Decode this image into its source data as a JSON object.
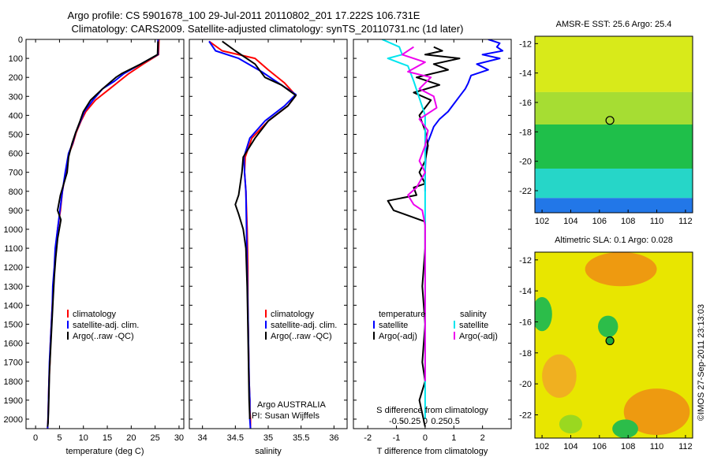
{
  "header": {
    "line1": "Argo profile: CS 5901678_100 29-Jul-2011 20110802_201 17.222S 106.731E",
    "line2": "Climatology: CARS2009. Satellite-adjusted climatology: synTS_20110731.nc (1d later)"
  },
  "timestamp": "©IMOS 27-Sep-2011 23:13:03",
  "colors": {
    "clim": "#ff0000",
    "sat": "#0000ff",
    "argo": "#000000",
    "sal_sat": "#00e5ee",
    "sal_argo": "#ee00ee"
  },
  "chart_data": [
    {
      "id": "temperature",
      "type": "line",
      "title": "",
      "xlabel": "temperature (deg C)",
      "ylabel": "",
      "xlim": [
        -2,
        31
      ],
      "ylim": [
        0,
        2050
      ],
      "xticks": [
        0,
        5,
        10,
        15,
        20,
        25,
        30
      ],
      "xtick_labels": [
        "0",
        "5",
        "10",
        "15",
        "20",
        "25",
        "30"
      ],
      "yticks": [
        0,
        100,
        200,
        300,
        400,
        500,
        600,
        700,
        800,
        900,
        1000,
        1100,
        1200,
        1300,
        1400,
        1500,
        1600,
        1700,
        1800,
        1900,
        2000
      ],
      "ytick_labels": [
        "0",
        "100",
        "200",
        "300",
        "400",
        "500",
        "600",
        "700",
        "800",
        "900",
        "1000",
        "1100",
        "1200",
        "1300",
        "1400",
        "1500",
        "1600",
        "1700",
        "1800",
        "1900",
        "2000"
      ],
      "legend": [
        "climatology",
        "satellite-adj. clim.",
        "Argo(..raw -QC)"
      ],
      "series": [
        {
          "name": "climatology",
          "color": "#ff0000",
          "x": [
            25.8,
            25.7,
            22.5,
            19.5,
            17.5,
            15.5,
            12.5,
            10.5,
            9.5,
            8.5,
            7.8,
            7.0,
            6.3,
            5.6,
            5.2,
            4.6,
            4.2,
            4.0,
            3.7,
            3.5,
            3.3,
            3.1,
            3.0,
            2.8,
            2.7,
            2.6,
            2.5
          ],
          "y": [
            0,
            80,
            130,
            180,
            220,
            260,
            320,
            380,
            430,
            490,
            550,
            600,
            700,
            800,
            900,
            1000,
            1100,
            1200,
            1300,
            1400,
            1500,
            1600,
            1700,
            1800,
            1900,
            2000,
            2050
          ]
        },
        {
          "name": "satellite-adj. clim.",
          "color": "#0000ff",
          "x": [
            25.6,
            25.6,
            22.0,
            18.5,
            16.5,
            14.0,
            12.0,
            10.2,
            9.4,
            8.4,
            7.7,
            6.9,
            6.2,
            5.6,
            5.1,
            4.6,
            4.1,
            3.9,
            3.6,
            3.5,
            3.3,
            3.1,
            2.9,
            2.8,
            2.7,
            2.6,
            2.5
          ],
          "y": [
            0,
            80,
            130,
            180,
            220,
            260,
            320,
            380,
            430,
            490,
            550,
            600,
            700,
            800,
            900,
            1000,
            1100,
            1200,
            1300,
            1400,
            1500,
            1600,
            1700,
            1800,
            1900,
            2000,
            2050
          ]
        },
        {
          "name": "Argo(..raw -QC)",
          "color": "#000000",
          "x": [
            25.6,
            25.5,
            22.0,
            18.0,
            16.8,
            14.0,
            11.5,
            10.0,
            9.3,
            8.4,
            7.6,
            6.9,
            6.6,
            5.2,
            4.6,
            5.3,
            4.6,
            4.2,
            3.9,
            3.7,
            3.5,
            3.3,
            3.1,
            2.9,
            2.8,
            2.7,
            2.6,
            2.5
          ],
          "y": [
            10,
            80,
            130,
            180,
            200,
            260,
            320,
            380,
            430,
            490,
            550,
            620,
            700,
            820,
            900,
            950,
            1050,
            1150,
            1250,
            1350,
            1450,
            1550,
            1650,
            1750,
            1850,
            1950,
            2020,
            2040
          ]
        }
      ]
    },
    {
      "id": "salinity",
      "type": "line",
      "title": "",
      "xlabel": "salinity",
      "ylabel": "",
      "xlim": [
        33.8,
        36.2
      ],
      "ylim": [
        0,
        2050
      ],
      "xticks": [
        34,
        34.5,
        35,
        35.5,
        36
      ],
      "xtick_labels": [
        "34",
        "34.5",
        "35",
        "35.5",
        "36"
      ],
      "legend": [
        "climatology",
        "satellite-adj. clim.",
        "Argo(..raw -QC)"
      ],
      "annotation": [
        "Argo AUSTRALIA",
        "PI: Susan Wijffels"
      ],
      "series": [
        {
          "name": "climatology",
          "color": "#ff0000",
          "x": [
            34.1,
            34.3,
            34.8,
            35.0,
            35.25,
            35.42,
            35.3,
            35.0,
            34.75,
            34.65,
            34.64,
            34.66,
            34.68,
            34.69,
            34.69,
            34.7,
            34.71,
            34.72,
            34.72,
            34.73,
            34.73
          ],
          "y": [
            10,
            60,
            100,
            160,
            230,
            295,
            350,
            430,
            520,
            620,
            700,
            800,
            1000,
            1200,
            1400,
            1600,
            1800,
            1900,
            1950,
            2000,
            2050
          ]
        },
        {
          "name": "satellite-adj. clim.",
          "color": "#0000ff",
          "x": [
            34.1,
            34.2,
            34.55,
            34.9,
            35.2,
            35.42,
            35.25,
            34.95,
            34.72,
            34.63,
            34.64,
            34.66,
            34.67,
            34.68,
            34.69,
            34.7,
            34.71,
            34.72,
            34.72,
            34.73
          ],
          "y": [
            10,
            60,
            100,
            170,
            240,
            290,
            350,
            430,
            520,
            620,
            700,
            800,
            1000,
            1200,
            1400,
            1600,
            1800,
            1900,
            2000,
            2050
          ]
        },
        {
          "name": "Argo(..raw -QC)",
          "color": "#000000",
          "x": [
            34.3,
            34.5,
            34.8,
            34.95,
            35.2,
            35.42,
            35.3,
            35.0,
            34.8,
            34.62,
            34.6,
            34.55,
            34.5,
            34.55,
            34.62,
            34.66,
            34.68,
            34.69,
            34.7,
            34.71,
            34.72
          ],
          "y": [
            10,
            60,
            130,
            200,
            240,
            295,
            350,
            430,
            520,
            620,
            700,
            820,
            870,
            920,
            1000,
            1100,
            1300,
            1500,
            1700,
            1900,
            2000
          ]
        }
      ]
    },
    {
      "id": "difference",
      "type": "line",
      "title": "",
      "xlabel": "T difference from climatology",
      "xlabel_top": "S difference from climatology",
      "xlim": [
        -2.5,
        3
      ],
      "ylim": [
        0,
        2050
      ],
      "xticks": [
        -2,
        -1,
        0,
        1,
        2
      ],
      "xtick_labels": [
        "-2",
        "-1",
        "0",
        "1",
        "2"
      ],
      "s_ticks": [
        -1,
        -0.5,
        0,
        0.5,
        1
      ],
      "s_tick_labels": [
        "-0.5",
        "-0.25",
        "0",
        "0.25",
        "0.5"
      ],
      "legend_titles": [
        "temperature",
        "salinity"
      ],
      "legend": [
        "satellite",
        "Argo(-adj)",
        "satellite",
        "Argo(-adj)"
      ],
      "series": [
        {
          "name": "temperature satellite",
          "color": "#0000ff",
          "x": [
            2.2,
            2.6,
            2.5,
            2.7,
            2.0,
            2.6,
            1.8,
            2.2,
            1.6,
            1.5,
            1.4,
            1.2,
            1.0,
            0.8,
            0.5,
            0.3,
            0.2,
            0.1,
            0.05,
            0.02,
            0.0,
            0.0
          ],
          "y": [
            0,
            20,
            40,
            60,
            80,
            100,
            130,
            160,
            190,
            230,
            260,
            300,
            340,
            380,
            420,
            460,
            500,
            540,
            580,
            620,
            700,
            800
          ]
        },
        {
          "name": "temperature Argo",
          "color": "#000000",
          "x": [
            0.3,
            0.6,
            0.0,
            1.2,
            0.3,
            0.8,
            -0.3,
            0.5,
            -0.4,
            0.2,
            -0.2,
            0.0,
            0.1,
            0.0,
            -0.2,
            0.0,
            -0.4,
            -0.3,
            -1.3,
            -1.1,
            0.0,
            0.0,
            -0.1,
            0.0,
            -0.1,
            0.0,
            -0.2,
            0.0
          ],
          "y": [
            40,
            60,
            80,
            100,
            130,
            160,
            200,
            240,
            280,
            320,
            400,
            480,
            560,
            640,
            700,
            760,
            780,
            820,
            850,
            900,
            960,
            1100,
            1300,
            1500,
            1700,
            1800,
            1900,
            2040
          ]
        },
        {
          "name": "salinity satellite",
          "color": "#00e5ee",
          "x": [
            -1.5,
            -0.9,
            -0.8,
            -1.3,
            -0.6,
            -0.4,
            0.0,
            0.0
          ],
          "y": [
            0,
            40,
            80,
            100,
            140,
            220,
            400,
            2000
          ]
        },
        {
          "name": "salinity Argo",
          "color": "#ee00ee",
          "x": [
            -0.4,
            -0.8,
            0.0,
            -0.6,
            0.2,
            -0.2,
            0.3,
            0.4,
            -0.2,
            0.1,
            0.0,
            -0.2,
            0.0,
            -0.3,
            -0.6,
            -0.4,
            -0.1,
            0.0,
            0.0
          ],
          "y": [
            40,
            80,
            120,
            170,
            200,
            260,
            300,
            360,
            420,
            480,
            560,
            640,
            700,
            780,
            820,
            870,
            900,
            980,
            1800
          ]
        }
      ]
    },
    {
      "id": "sst_map",
      "type": "heatmap",
      "title": "AMSR-E SST: 25.6 Argo: 25.4",
      "xlim": [
        101.5,
        112.5
      ],
      "ylim": [
        -23.5,
        -11.5
      ],
      "xticks": [
        102,
        104,
        106,
        108,
        110,
        112
      ],
      "xtick_labels": [
        "102",
        "104",
        "106",
        "108",
        "110",
        "112"
      ],
      "yticks": [
        -12,
        -14,
        -16,
        -18,
        -20,
        -22
      ],
      "ytick_labels": [
        "-12",
        "-14",
        "-16",
        "-18",
        "-20",
        "-22"
      ],
      "point": {
        "lon": 106.731,
        "lat": -17.222
      },
      "bands": [
        {
          "from_lat": -11.5,
          "to_lat": -15.3,
          "color": "#d8ea1a"
        },
        {
          "from_lat": -15.3,
          "to_lat": -17.5,
          "color": "#a6dd33"
        },
        {
          "from_lat": -17.5,
          "to_lat": -20.5,
          "color": "#1fbf4a"
        },
        {
          "from_lat": -20.5,
          "to_lat": -22.5,
          "color": "#26d6c8"
        },
        {
          "from_lat": -22.5,
          "to_lat": -23.5,
          "color": "#2277e8"
        }
      ]
    },
    {
      "id": "sla_map",
      "type": "heatmap",
      "title": "Altimetric SLA: 0.1 Argo: 0.028",
      "xlim": [
        101.5,
        112.5
      ],
      "ylim": [
        -23.5,
        -11.5
      ],
      "xticks": [
        102,
        104,
        106,
        108,
        110,
        112
      ],
      "xtick_labels": [
        "102",
        "104",
        "106",
        "108",
        "110",
        "112"
      ],
      "yticks": [
        -12,
        -14,
        -16,
        -18,
        -20,
        -22
      ],
      "ytick_labels": [
        "-12",
        "-14",
        "-16",
        "-18",
        "-20",
        "-22"
      ],
      "point": {
        "lon": 106.731,
        "lat": -17.222
      },
      "base_color": "#e8e600",
      "blobs": [
        {
          "lon": 107.5,
          "lat": -12.6,
          "rlon": 2.5,
          "rlat": 1.1,
          "color": "#ee9a10"
        },
        {
          "lon": 110.0,
          "lat": -21.8,
          "rlon": 2.3,
          "rlat": 1.5,
          "color": "#ee9a10"
        },
        {
          "lon": 103.2,
          "lat": -19.5,
          "rlon": 1.2,
          "rlat": 1.4,
          "color": "#f0b020"
        },
        {
          "lon": 102.0,
          "lat": -15.5,
          "rlon": 0.7,
          "rlat": 1.1,
          "color": "#2cbd4a"
        },
        {
          "lon": 106.6,
          "lat": -16.3,
          "rlon": 0.7,
          "rlat": 0.7,
          "color": "#2cbd4a"
        },
        {
          "lon": 107.8,
          "lat": -22.9,
          "rlon": 0.9,
          "rlat": 0.6,
          "color": "#2cbd4a"
        },
        {
          "lon": 104.0,
          "lat": -22.6,
          "rlon": 0.8,
          "rlat": 0.6,
          "color": "#9ad820"
        }
      ]
    }
  ]
}
